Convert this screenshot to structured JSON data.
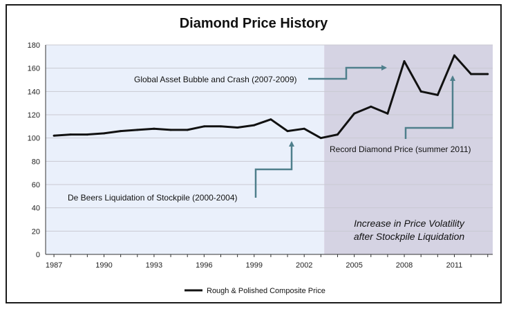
{
  "chart_data": {
    "type": "line",
    "title": "Diamond Price History",
    "xlabel": "",
    "ylabel": "",
    "xlim": [
      1986.5,
      2013.3
    ],
    "ylim": [
      0,
      180
    ],
    "x_ticks": [
      "1987",
      "1990",
      "1993",
      "1996",
      "1999",
      "2002",
      "2005",
      "2008",
      "2011"
    ],
    "y_ticks": [
      "0",
      "20",
      "40",
      "60",
      "80",
      "100",
      "120",
      "140",
      "160",
      "180"
    ],
    "grid": "horizontal",
    "legend_position": "bottom",
    "series": [
      {
        "name": "Rough & Polished Composite Price",
        "color": "#111111",
        "x": [
          1987,
          1988,
          1989,
          1990,
          1991,
          1992,
          1993,
          1994,
          1995,
          1996,
          1997,
          1998,
          1999,
          2000,
          2001,
          2002,
          2003,
          2004,
          2005,
          2006,
          2007,
          2008,
          2009,
          2010,
          2011,
          2012,
          2013
        ],
        "values": [
          102,
          103,
          103,
          104,
          106,
          107,
          108,
          107,
          107,
          110,
          110,
          109,
          111,
          116,
          106,
          108,
          100,
          103,
          121,
          127,
          121,
          166,
          140,
          137,
          171,
          155,
          155
        ]
      }
    ],
    "shaded_region": {
      "x_start": 2003.2,
      "x_end": 2013.3,
      "color": "#d5d3e3"
    },
    "pre_region_color": "#eaf0fb",
    "annotations": [
      {
        "text": "Global Asset Bubble and Crash (2007-2009)"
      },
      {
        "text": "De Beers Liquidation of Stockpile (2000-2004)"
      },
      {
        "text": "Record Diamond Price (summer 2011)"
      },
      {
        "text": "Increase in Price Volatility"
      },
      {
        "text": "after Stockpile Liquidation"
      }
    ],
    "arrow_color": "#4f7f8c"
  }
}
